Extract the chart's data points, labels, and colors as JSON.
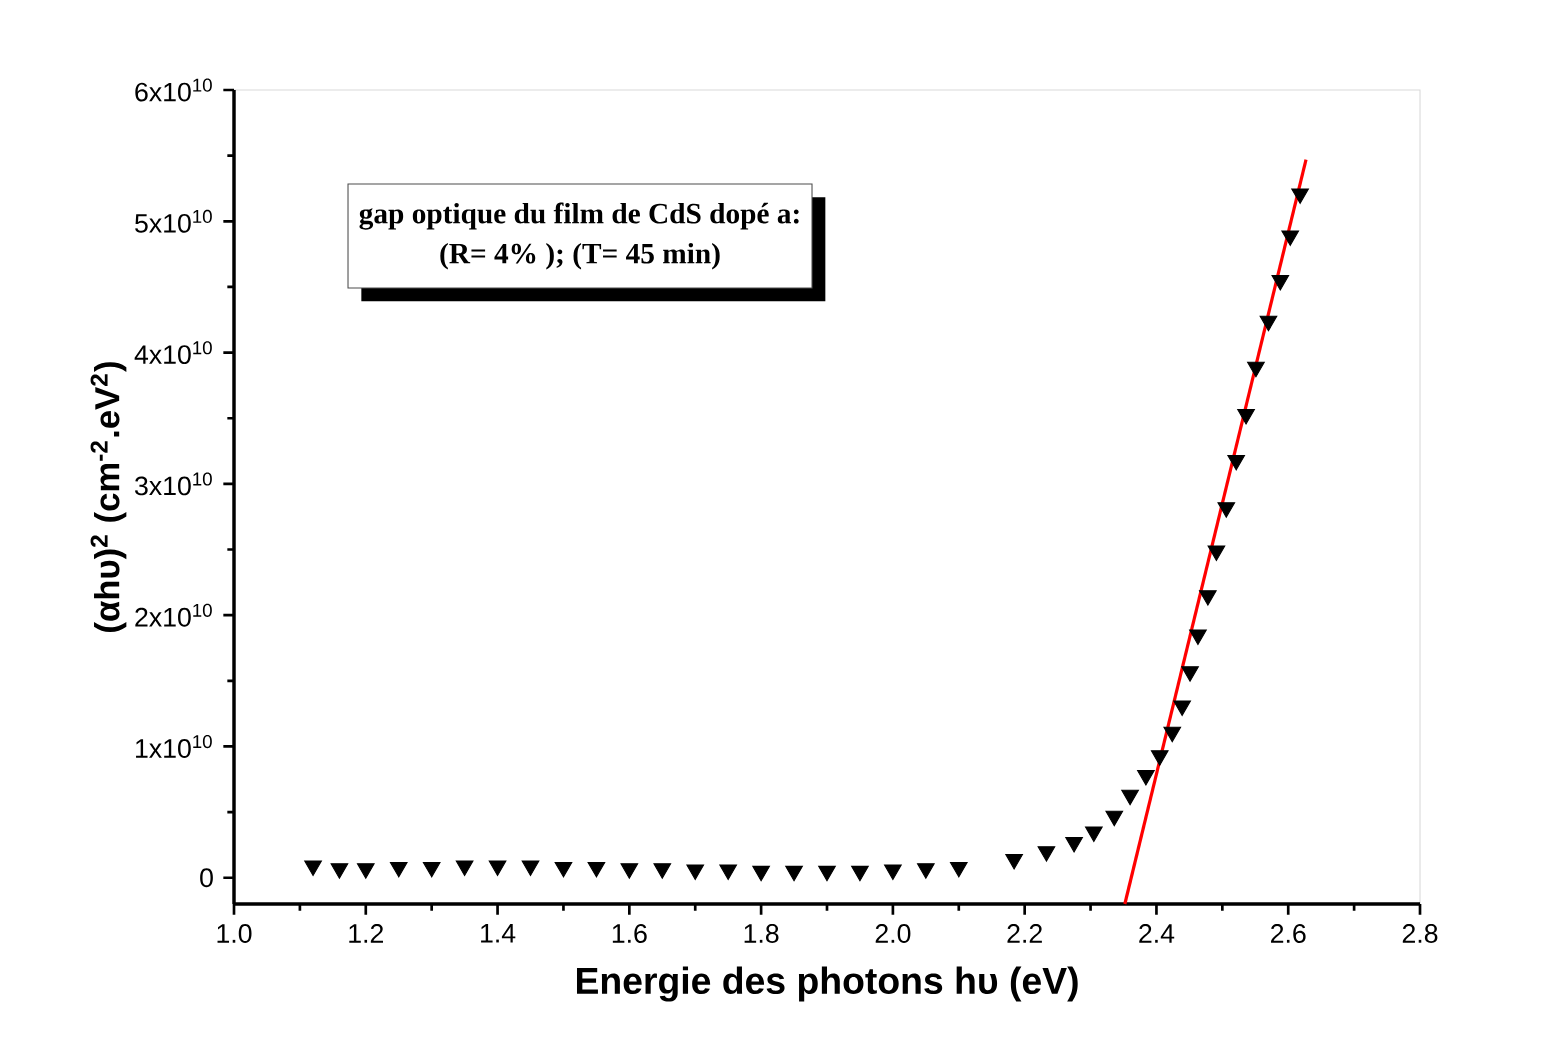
{
  "chart_data": {
    "type": "scatter",
    "xlabel": "Energie des photons hυ (eV)",
    "ylabel": "(αhυ)$^{2}$ (cm$^{-2}$.eV$^{2}$)",
    "annotations": [
      "gap optique du film  de CdS dopé a:",
      "(R= 4% );  (T= 45 min)"
    ],
    "xlim": [
      1.0,
      2.8
    ],
    "ylim": [
      -2000000000.0,
      60000000000.0
    ],
    "xticks": [
      {
        "value": 1.0,
        "label": "1.0"
      },
      {
        "value": 1.2,
        "label": "1.2"
      },
      {
        "value": 1.4,
        "label": "1.4"
      },
      {
        "value": 1.6,
        "label": "1.6"
      },
      {
        "value": 1.8,
        "label": "1.8"
      },
      {
        "value": 2.0,
        "label": "2.0"
      },
      {
        "value": 2.2,
        "label": "2.2"
      },
      {
        "value": 2.4,
        "label": "2.4"
      },
      {
        "value": 2.6,
        "label": "2.6"
      },
      {
        "value": 2.8,
        "label": "2.8"
      }
    ],
    "yticks": [
      0,
      {
        "value": 10000000000.0,
        "label": "1x10$^{10}$"
      },
      {
        "value": 20000000000.0,
        "label": "2x10$^{10}$"
      },
      {
        "value": 30000000000.0,
        "label": "3x10$^{10}$"
      },
      {
        "value": 40000000000.0,
        "label": "4x10$^{10}$"
      },
      {
        "value": 50000000000.0,
        "label": "5x10$^{10}$"
      },
      {
        "value": 60000000000.0,
        "label": "6x10$^{10}$"
      }
    ],
    "grid": false,
    "marker": "triangle",
    "series": [
      {
        "color": "#000000",
        "x": [
          1.12,
          1.16,
          1.2,
          1.25,
          1.3,
          1.35,
          1.4,
          1.45,
          1.5,
          1.55,
          1.6,
          1.65,
          1.7,
          1.75,
          1.8,
          1.85,
          1.9,
          1.95,
          2.0,
          2.05,
          2.1,
          2.184,
          2.233,
          2.275,
          2.305,
          2.336,
          2.36,
          2.384,
          2.405,
          2.424,
          2.439,
          2.451,
          2.463,
          2.478,
          2.491,
          2.506,
          2.521,
          2.536,
          2.551,
          2.57,
          2.588,
          2.603,
          2.618
        ],
        "values": [
          900000000.0,
          700000000.0,
          700000000.0,
          800000000.0,
          800000000.0,
          900000000.0,
          900000000.0,
          900000000.0,
          800000000.0,
          800000000.0,
          700000000.0,
          700000000.0,
          600000000.0,
          600000000.0,
          500000000.0,
          500000000.0,
          500000000.0,
          500000000.0,
          600000000.0,
          700000000.0,
          800000000.0,
          1400000000.0,
          2000000000.0,
          2700000000.0,
          3500000000.0,
          4700000000.0,
          6300000000.0,
          7800000000.0,
          9300000000.0,
          11100000000.0,
          13100000000.0,
          15700000000.0,
          18500000000.0,
          21500000000.0,
          24900000000.0,
          28200000000.0,
          31800000000.0,
          35300000000.0,
          38900000000.0,
          42400000000.0,
          45500000000.0,
          48900000000.0,
          52100000000.0
        ]
      },
      {
        "type": "line",
        "color": "#ff0000",
        "marker": "none",
        "x": [
          2.352,
          2.627
        ],
        "values": [
          -2000000000.0,
          54700000000.0
        ]
      }
    ]
  }
}
